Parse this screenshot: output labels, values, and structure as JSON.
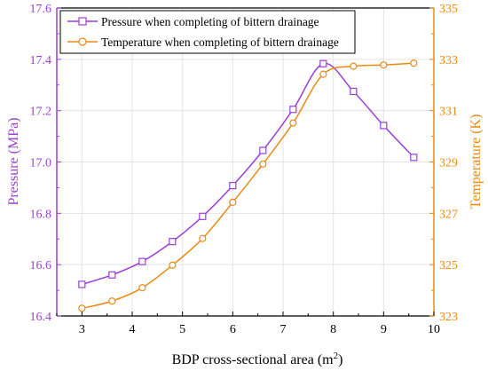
{
  "colors": {
    "pressure": "#9b3fd6",
    "temperature": "#e98a12",
    "axis": "#000000",
    "grid": "#e3e3e3"
  },
  "chart_data": {
    "type": "line",
    "title": "",
    "xlabel": "BDP cross-sectional area (m",
    "xlabel_superscript": "2",
    "xlabel_suffix": ")",
    "ylabel_left": "Pressure (MPa)",
    "ylabel_right": "Temperature (K)",
    "xlim": [
      2.5,
      10
    ],
    "ylim_left": [
      16.4,
      17.6
    ],
    "ylim_right": [
      323,
      335
    ],
    "grid": true,
    "legend_position": "top-left",
    "x_ticks": [
      3,
      4,
      5,
      6,
      7,
      8,
      9,
      10
    ],
    "y_left_ticks": [
      "16.4",
      "16.6",
      "16.8",
      "17.0",
      "17.2",
      "17.4",
      "17.6"
    ],
    "y_left_tick_values": [
      16.4,
      16.6,
      16.8,
      17.0,
      17.2,
      17.4,
      17.6
    ],
    "y_right_ticks": [
      "323",
      "325",
      "327",
      "329",
      "331",
      "333",
      "335"
    ],
    "y_right_tick_values": [
      323,
      325,
      327,
      329,
      331,
      333,
      335
    ],
    "series": [
      {
        "name": "Pressure when completing of bittern drainage",
        "axis": "left",
        "marker": "square",
        "x": [
          3.0,
          3.6,
          4.2,
          4.8,
          5.4,
          6.0,
          6.6,
          7.2,
          7.8,
          8.4,
          9.0,
          9.6
        ],
        "y": [
          16.523,
          16.56,
          16.612,
          16.69,
          16.788,
          16.908,
          17.045,
          17.205,
          17.383,
          17.275,
          17.142,
          17.018
        ]
      },
      {
        "name": "Temperature when completing of bittern drainage",
        "axis": "right",
        "marker": "circle",
        "x": [
          3.0,
          3.6,
          4.2,
          4.8,
          5.4,
          6.0,
          6.6,
          7.2,
          7.8,
          8.4,
          9.0,
          9.6
        ],
        "y": [
          323.3,
          323.58,
          324.1,
          324.98,
          326.02,
          327.43,
          328.92,
          330.52,
          332.42,
          332.73,
          332.78,
          332.85
        ]
      }
    ]
  }
}
